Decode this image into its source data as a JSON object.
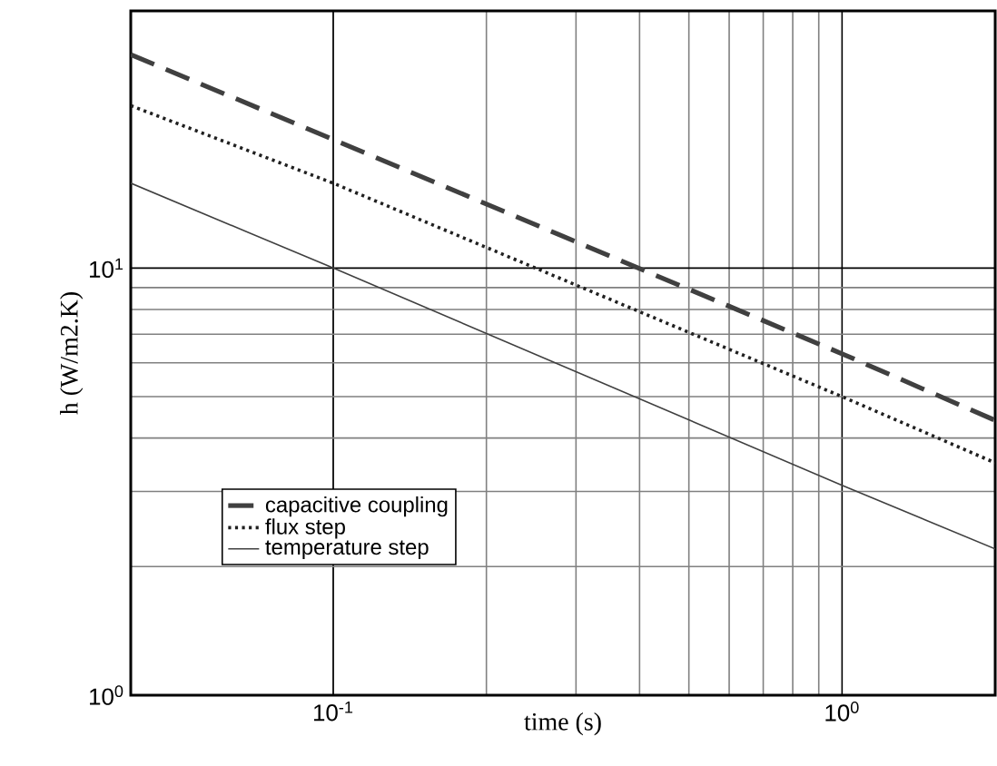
{
  "chart_data": {
    "type": "line",
    "xlabel": "time (s)",
    "ylabel": "h (W/m2.K)",
    "log": "xy",
    "xlim": [
      0.04,
      2
    ],
    "ylim": [
      1,
      40
    ],
    "xticks": [
      {
        "value": 0.1,
        "label": "10$^{-1}$"
      },
      {
        "value": 1,
        "label": "10$^{0}$"
      }
    ],
    "yticks": [
      {
        "value": 1,
        "label": "10$^{0}$"
      },
      {
        "value": 10,
        "label": "10$^{1}$"
      }
    ],
    "grid": true,
    "legend": "bottom left",
    "marker": "none",
    "series": [
      {
        "name": "capacitive coupling",
        "color": "#404040",
        "line_style": "dashed",
        "x": [
          0.04,
          0.1,
          1,
          2
        ],
        "values": [
          31.6,
          20,
          6.3,
          4.4
        ]
      },
      {
        "name": "flux step",
        "color": "#202020",
        "line_style": "dotted",
        "x": [
          0.04,
          0.1,
          1,
          2
        ],
        "values": [
          24,
          15.8,
          5,
          3.5
        ]
      },
      {
        "name": "temperature step",
        "color": "#404040",
        "line_style": "solid",
        "x": [
          0.04,
          0.1,
          1,
          2
        ],
        "values": [
          15.8,
          10,
          3.1,
          2.2
        ]
      }
    ]
  }
}
